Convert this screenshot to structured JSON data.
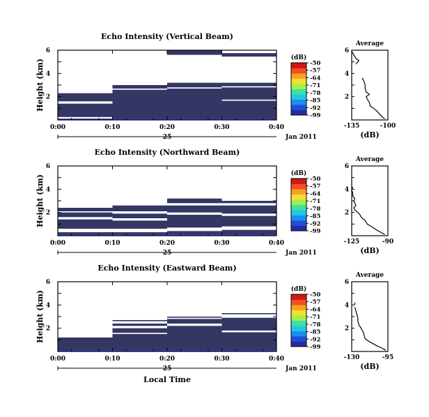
{
  "panels": [
    {
      "title": "Echo Intensity (Vertical Beam)",
      "ylabel": "Height (km)",
      "day": "25",
      "date": "Jan 2011",
      "cb_unit": "(dB)",
      "cb_ticks": [
        "-50",
        "-57",
        "-64",
        "-71",
        "-78",
        "-85",
        "-92",
        "-99"
      ],
      "avg_title": "Average",
      "avg_xlabel": "(dB)",
      "avg_xticks": [
        "-135",
        "-100"
      ],
      "avg_yticks": [
        "6",
        "4",
        "2"
      ],
      "xticks": [
        "0:00",
        "0:10",
        "0:20",
        "0:30",
        "0:40"
      ],
      "yticks": [
        "6",
        "4",
        "2"
      ]
    },
    {
      "title": "Echo Intensity (Northward Beam)",
      "ylabel": "Height (km)",
      "day": "25",
      "date": "Jan 2011",
      "cb_unit": "(dB)",
      "cb_ticks": [
        "-50",
        "-57",
        "-64",
        "-71",
        "-78",
        "-85",
        "-92",
        "-99"
      ],
      "avg_title": "Average",
      "avg_xlabel": "(dB)",
      "avg_xticks": [
        "-125",
        "-90"
      ],
      "avg_yticks": [
        "6",
        "4",
        "2"
      ],
      "xticks": [
        "0:00",
        "0:10",
        "0:20",
        "0:30",
        "0:40"
      ],
      "yticks": [
        "6",
        "4",
        "2"
      ]
    },
    {
      "title": "Echo Intensity (Eastward Beam)",
      "ylabel": "Height (km)",
      "day": "25",
      "date": "Jan 2011",
      "cb_unit": "(dB)",
      "cb_ticks": [
        "-50",
        "-57",
        "-64",
        "-71",
        "-78",
        "-85",
        "-92",
        "-99"
      ],
      "avg_title": "Average",
      "avg_xlabel": "(dB)",
      "avg_xticks": [
        "-130",
        "-95"
      ],
      "avg_yticks": [
        "6",
        "4",
        "2"
      ],
      "xticks": [
        "0:00",
        "0:10",
        "0:20",
        "0:30",
        "0:40"
      ],
      "yticks": [
        "6",
        "4",
        "2"
      ]
    }
  ],
  "xlabel": "Local Time",
  "colors": {
    "echo": "#343764",
    "low": "#3040c8",
    "colormap": [
      "#2a2aa0",
      "#1f4fd8",
      "#1a8ef0",
      "#20c8e0",
      "#40e0a0",
      "#a0f050",
      "#f0e030",
      "#f8a020",
      "#f05020",
      "#d01818"
    ]
  },
  "chart_data": [
    {
      "type": "heatmap",
      "title": "Echo Intensity (Vertical Beam)",
      "xlabel": "",
      "ylabel": "Height (km)",
      "x_range": [
        "0:00",
        "0:40"
      ],
      "ylim": [
        0,
        6
      ],
      "color_scale": {
        "label": "(dB)",
        "min": -99,
        "max": -50
      },
      "columns": [
        {
          "start": "0:00",
          "end": "0:10",
          "tops": [
            {
              "bottom": 0.25,
              "top": 1.4
            },
            {
              "bottom": 1.6,
              "top": 2.3
            }
          ]
        },
        {
          "start": "0:10",
          "end": "0:20",
          "tops": [
            {
              "bottom": 0.0,
              "top": 2.6
            },
            {
              "bottom": 2.7,
              "top": 3.0
            }
          ]
        },
        {
          "start": "0:20",
          "end": "0:30",
          "tops": [
            {
              "bottom": 0.0,
              "top": 2.7
            },
            {
              "bottom": 2.8,
              "top": 3.2
            },
            {
              "bottom": 5.6,
              "top": 6.0
            }
          ]
        },
        {
          "start": "0:30",
          "end": "0:40",
          "tops": [
            {
              "bottom": 0.0,
              "top": 1.65
            },
            {
              "bottom": 1.75,
              "top": 2.8
            },
            {
              "bottom": 2.9,
              "top": 3.2
            },
            {
              "bottom": 5.45,
              "top": 5.75
            }
          ]
        }
      ],
      "average_profile": {
        "xlim": [
          -135,
          -100
        ],
        "ylim": [
          0,
          6
        ],
        "points": [
          [
            -103,
            0.1
          ],
          [
            -106,
            0.3
          ],
          [
            -108,
            0.5
          ],
          [
            -111,
            0.8
          ],
          [
            -114,
            1.0
          ],
          [
            -117,
            1.2
          ],
          [
            -118,
            1.5
          ],
          [
            -120,
            1.8
          ],
          [
            -121,
            2.0
          ],
          [
            -118,
            2.2
          ],
          [
            -121,
            2.4
          ],
          [
            -122,
            2.7
          ],
          [
            -122,
            3.0
          ],
          [
            -123,
            3.3
          ],
          [
            -125,
            3.6
          ],
          [
            -124,
            3.5
          ]
        ],
        "upper_points": [
          [
            -131,
            4.8
          ],
          [
            -128,
            5.1
          ],
          [
            -131,
            5.3
          ],
          [
            -133,
            5.6
          ],
          [
            -135,
            5.9
          ]
        ]
      }
    },
    {
      "type": "heatmap",
      "title": "Echo Intensity (Northward Beam)",
      "xlabel": "",
      "ylabel": "Height (km)",
      "x_range": [
        "0:00",
        "0:40"
      ],
      "ylim": [
        0,
        6
      ],
      "color_scale": {
        "label": "(dB)",
        "min": -99,
        "max": -50
      },
      "columns": [
        {
          "start": "0:00",
          "end": "0:10",
          "tops": [
            {
              "bottom": 0.1,
              "top": 0.3
            },
            {
              "bottom": 0.6,
              "top": 1.4
            },
            {
              "bottom": 1.6,
              "top": 2.0
            },
            {
              "bottom": 2.1,
              "top": 2.4
            }
          ]
        },
        {
          "start": "0:10",
          "end": "0:20",
          "tops": [
            {
              "bottom": 0.1,
              "top": 0.3
            },
            {
              "bottom": 0.6,
              "top": 1.3
            },
            {
              "bottom": 1.5,
              "top": 1.9
            },
            {
              "bottom": 2.1,
              "top": 2.6
            }
          ]
        },
        {
          "start": "0:20",
          "end": "0:30",
          "tops": [
            {
              "bottom": 0.1,
              "top": 0.4
            },
            {
              "bottom": 0.7,
              "top": 1.8
            },
            {
              "bottom": 2.0,
              "top": 2.6
            },
            {
              "bottom": 2.8,
              "top": 3.2
            }
          ]
        },
        {
          "start": "0:30",
          "end": "0:40",
          "tops": [
            {
              "bottom": 0.1,
              "top": 0.5
            },
            {
              "bottom": 0.8,
              "top": 1.7
            },
            {
              "bottom": 1.9,
              "top": 2.6
            },
            {
              "bottom": 2.8,
              "top": 3.0
            }
          ]
        }
      ],
      "average_profile": {
        "xlim": [
          -125,
          -90
        ],
        "ylim": [
          0,
          6
        ],
        "points": [
          [
            -93,
            0.1
          ],
          [
            -97,
            0.3
          ],
          [
            -101,
            0.5
          ],
          [
            -106,
            0.8
          ],
          [
            -110,
            1.0
          ],
          [
            -112,
            1.3
          ],
          [
            -116,
            1.6
          ],
          [
            -117,
            1.8
          ],
          [
            -119,
            2.0
          ],
          [
            -122,
            2.2
          ],
          [
            -123,
            2.4
          ],
          [
            -121,
            2.6
          ],
          [
            -122,
            2.8
          ],
          [
            -123,
            3.0
          ],
          [
            -122,
            3.2
          ],
          [
            -124,
            3.4
          ],
          [
            -124,
            3.7
          ],
          [
            -125,
            3.9
          ],
          [
            -124,
            4.2
          ]
        ]
      }
    },
    {
      "type": "heatmap",
      "title": "Echo Intensity (Eastward Beam)",
      "xlabel": "Local Time",
      "ylabel": "Height (km)",
      "x_range": [
        "0:00",
        "0:40"
      ],
      "ylim": [
        0,
        6
      ],
      "color_scale": {
        "label": "(dB)",
        "min": -99,
        "max": -50
      },
      "columns": [
        {
          "start": "0:00",
          "end": "0:10",
          "tops": [
            {
              "bottom": 0.0,
              "top": 1.2
            }
          ]
        },
        {
          "start": "0:10",
          "end": "0:20",
          "tops": [
            {
              "bottom": 0.0,
              "top": 1.5
            },
            {
              "bottom": 1.6,
              "top": 2.0
            },
            {
              "bottom": 2.2,
              "top": 2.4
            },
            {
              "bottom": 2.6,
              "top": 2.7
            }
          ]
        },
        {
          "start": "0:20",
          "end": "0:30",
          "tops": [
            {
              "bottom": 0.0,
              "top": 2.2
            },
            {
              "bottom": 2.4,
              "top": 2.8
            },
            {
              "bottom": 2.9,
              "top": 3.0
            }
          ]
        },
        {
          "start": "0:30",
          "end": "0:40",
          "tops": [
            {
              "bottom": 0.0,
              "top": 1.65
            },
            {
              "bottom": 1.8,
              "top": 2.9
            },
            {
              "bottom": 3.2,
              "top": 3.3
            }
          ]
        }
      ],
      "average_profile": {
        "xlim": [
          -130,
          -95
        ],
        "ylim": [
          0,
          6
        ],
        "points": [
          [
            -97,
            0.1
          ],
          [
            -101,
            0.3
          ],
          [
            -106,
            0.5
          ],
          [
            -110,
            0.7
          ],
          [
            -114,
            0.9
          ],
          [
            -117,
            1.1
          ],
          [
            -118,
            1.4
          ],
          [
            -119,
            1.7
          ],
          [
            -121,
            2.0
          ],
          [
            -123,
            2.3
          ],
          [
            -124,
            2.6
          ],
          [
            -124,
            2.9
          ],
          [
            -125,
            3.2
          ],
          [
            -126,
            3.5
          ],
          [
            -127,
            3.8
          ]
        ],
        "upper_points": [
          [
            -127,
            4.0
          ],
          [
            -127,
            4.2
          ]
        ]
      }
    }
  ]
}
